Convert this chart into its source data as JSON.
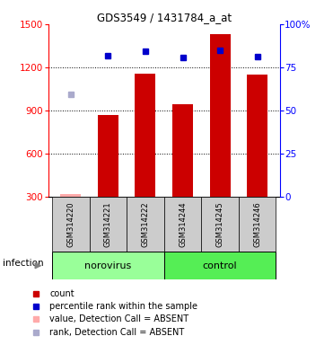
{
  "title": "GDS3549 / 1431784_a_at",
  "samples": [
    "GSM314220",
    "GSM314221",
    "GSM314222",
    "GSM314244",
    "GSM314245",
    "GSM314246"
  ],
  "bar_values": [
    null,
    870,
    1155,
    940,
    1430,
    1150
  ],
  "bar_absent": [
    320,
    null,
    null,
    null,
    null,
    null
  ],
  "blue_points_left": [
    null,
    1280,
    1310,
    1270,
    1320,
    1275
  ],
  "blue_absent_left": [
    1010,
    null,
    null,
    null,
    null,
    null
  ],
  "ylim_left": [
    300,
    1500
  ],
  "ylim_right": [
    0,
    100
  ],
  "left_ticks": [
    300,
    600,
    900,
    1200,
    1500
  ],
  "right_ticks": [
    0,
    25,
    50,
    75,
    100
  ],
  "bar_color": "#cc0000",
  "bar_absent_color": "#ffaaaa",
  "blue_color": "#0000cc",
  "blue_absent_color": "#aaaacc",
  "label_area_color": "#cccccc",
  "norovirus_color": "#99ff99",
  "control_color": "#55ee55",
  "background_color": "#ffffff",
  "legend_items": [
    {
      "label": "count",
      "color": "#cc0000"
    },
    {
      "label": "percentile rank within the sample",
      "color": "#0000cc"
    },
    {
      "label": "value, Detection Call = ABSENT",
      "color": "#ffaaaa"
    },
    {
      "label": "rank, Detection Call = ABSENT",
      "color": "#aaaacc"
    }
  ]
}
